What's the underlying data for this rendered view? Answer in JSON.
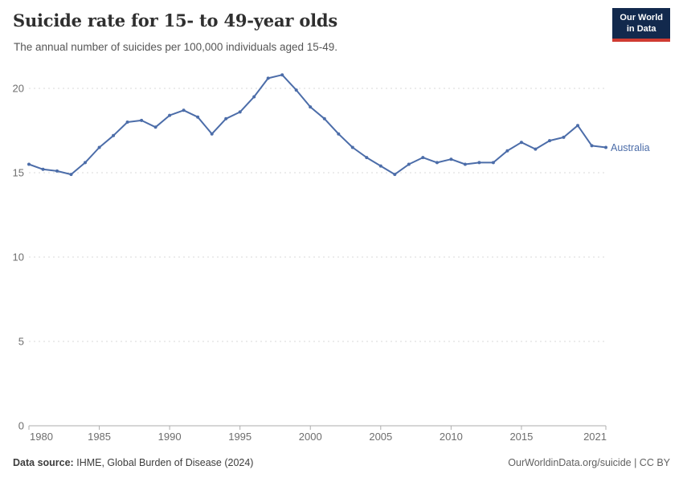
{
  "header": {
    "title": "Suicide rate for 15- to 49-year olds",
    "subtitle": "The annual number of suicides per 100,000 individuals aged 15-49."
  },
  "logo": {
    "line1": "Our World",
    "line2": "in Data"
  },
  "footer": {
    "source_label": "Data source:",
    "source_value": "IHME, Global Burden of Disease (2024)",
    "credit": "OurWorldinData.org/suicide | CC BY"
  },
  "colors": {
    "line": "#4C6DA9",
    "grid": "#d8d8d8",
    "axis": "#adadad",
    "tick_text": "#6e6e6e",
    "logo_bg": "#12294d",
    "logo_red": "#cf3b32"
  },
  "chart_data": {
    "type": "line",
    "title": "Suicide rate for 15- to 49-year olds",
    "subtitle": "The annual number of suicides per 100,000 individuals aged 15-49.",
    "xlabel": "",
    "ylabel": "",
    "xlim": [
      1980,
      2021
    ],
    "ylim": [
      0,
      20
    ],
    "yticks": [
      0,
      5,
      10,
      15,
      20
    ],
    "xticks": [
      1980,
      1985,
      1990,
      1995,
      2000,
      2005,
      2010,
      2015,
      2021
    ],
    "grid": "horizontal-dashed",
    "legend": "end-of-line-label",
    "x": [
      1980,
      1981,
      1982,
      1983,
      1984,
      1985,
      1986,
      1987,
      1988,
      1989,
      1990,
      1991,
      1992,
      1993,
      1994,
      1995,
      1996,
      1997,
      1998,
      1999,
      2000,
      2001,
      2002,
      2003,
      2004,
      2005,
      2006,
      2007,
      2008,
      2009,
      2010,
      2011,
      2012,
      2013,
      2014,
      2015,
      2016,
      2017,
      2018,
      2019,
      2020,
      2021
    ],
    "series": [
      {
        "name": "Australia",
        "color": "#4C6DA9",
        "values": [
          15.5,
          15.2,
          15.1,
          14.9,
          15.6,
          16.5,
          17.2,
          18.0,
          18.1,
          17.7,
          18.4,
          18.7,
          18.3,
          17.3,
          18.2,
          18.6,
          19.5,
          20.6,
          20.8,
          19.9,
          18.9,
          18.2,
          17.3,
          16.5,
          15.9,
          15.4,
          14.9,
          15.5,
          15.9,
          15.6,
          15.8,
          15.5,
          15.6,
          15.6,
          16.3,
          16.8,
          16.4,
          16.9,
          17.1,
          17.8,
          16.6,
          16.5
        ]
      }
    ]
  }
}
